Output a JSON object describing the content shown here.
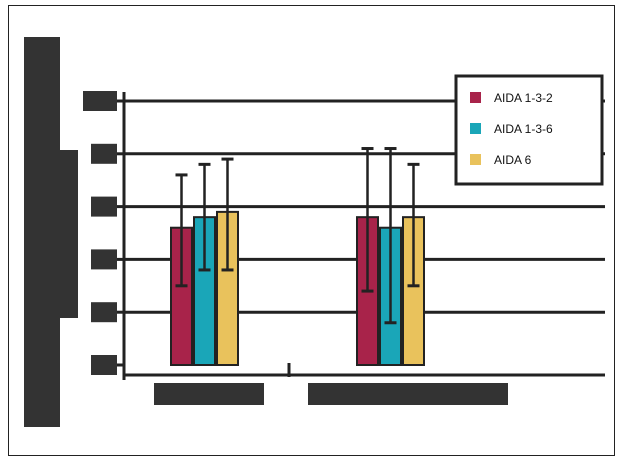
{
  "chart_data": {
    "type": "bar",
    "title": "",
    "xlabel": "",
    "ylabel": "",
    "ylim": [
      0,
      5
    ],
    "y_ticks": [
      0,
      1,
      2,
      3,
      4,
      5
    ],
    "categories": [
      "",
      ""
    ],
    "series": [
      {
        "name": "AIDA 1-3-2",
        "color": "#a8234a",
        "values": [
          2.6,
          2.8
        ],
        "error": [
          [
            1.5,
            3.6
          ],
          [
            1.4,
            4.1
          ]
        ]
      },
      {
        "name": "AIDA 1-3-6",
        "color": "#1aa6b8",
        "values": [
          2.8,
          2.6
        ],
        "error": [
          [
            1.8,
            3.8
          ],
          [
            0.8,
            4.1
          ]
        ]
      },
      {
        "name": "AIDA 6",
        "color": "#e9c25c",
        "values": [
          2.9,
          2.8
        ],
        "error": [
          [
            1.8,
            3.9
          ],
          [
            1.5,
            3.8
          ]
        ]
      }
    ],
    "grid": true,
    "legend_position": "top-right"
  }
}
